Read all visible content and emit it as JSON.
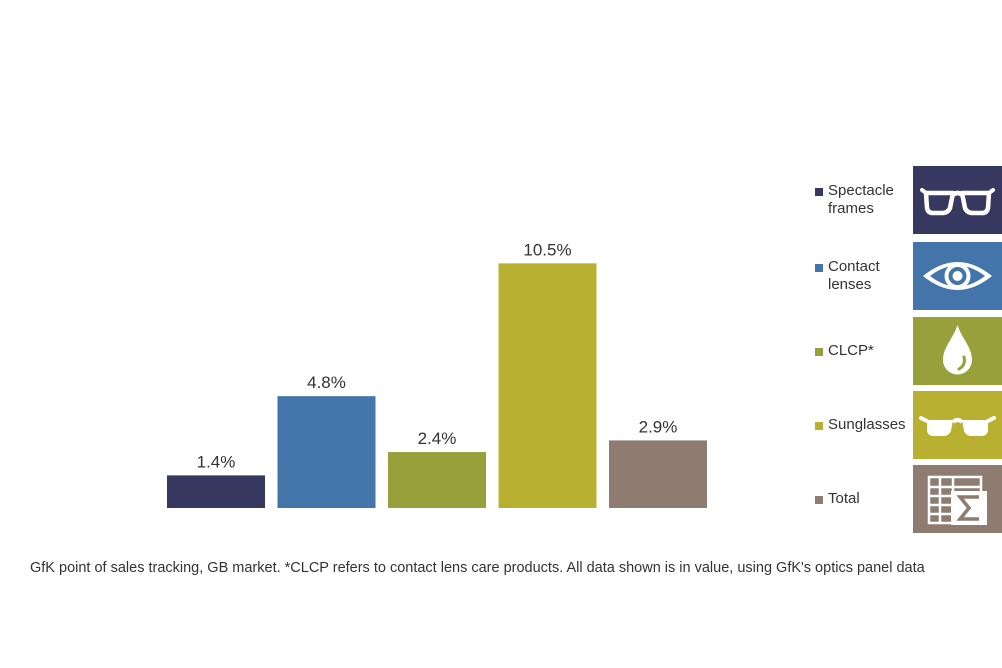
{
  "chart_data": {
    "type": "bar",
    "categories": [
      "Spectacle frames",
      "Contact lenses",
      "CLCP*",
      "Sunglasses",
      "Total"
    ],
    "values": [
      1.4,
      4.8,
      2.4,
      10.5,
      2.9
    ],
    "value_labels": [
      "1.4%",
      "4.8%",
      "2.4%",
      "10.5%",
      "2.9%"
    ],
    "colors": [
      "#37385f",
      "#4375aa",
      "#97a03a",
      "#b7b031",
      "#8d7c6f"
    ],
    "ylim": [
      0,
      12
    ],
    "title": "",
    "xlabel": "",
    "ylabel": "",
    "grid": false,
    "legend_position": "right"
  },
  "legend": {
    "items": [
      {
        "label_lines": [
          "Spectacle",
          "frames"
        ],
        "color": "#37385f",
        "icon": "glasses-icon"
      },
      {
        "label_lines": [
          "Contact",
          "lenses"
        ],
        "color": "#4375aa",
        "icon": "eye-icon"
      },
      {
        "label_lines": [
          "CLCP*"
        ],
        "color": "#97a03a",
        "icon": "drop-icon"
      },
      {
        "label_lines": [
          "Sunglasses"
        ],
        "color": "#b7b031",
        "icon": "sunglasses-icon"
      },
      {
        "label_lines": [
          "Total"
        ],
        "color": "#8d7c6f",
        "icon": "sum-table-icon"
      }
    ]
  },
  "footnote": "GfK point of sales tracking, GB market. *CLCP refers to contact lens care products. All data shown is in value, using GfK's optics panel data"
}
